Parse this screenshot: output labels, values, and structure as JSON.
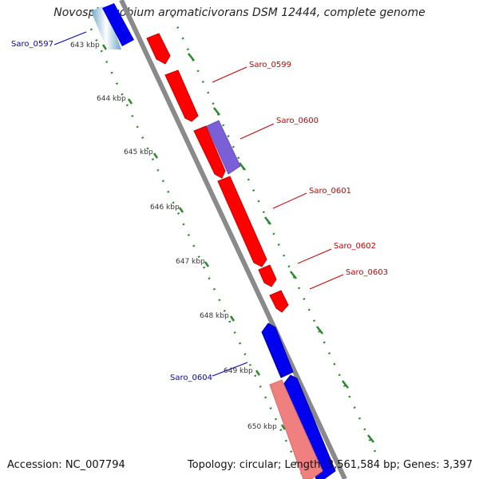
{
  "title": "Novosphingobium aromaticivorans DSM 12444, complete genome",
  "footer": {
    "accession": "Accession: NC_007794",
    "stats": "Topology: circular; Length: 3,561,584 bp; Genes: 3,397"
  },
  "colors": {
    "forward_gene": "#ff0000",
    "reverse_gene": "#0000ff",
    "forward_label": "#cc0000",
    "reverse_label": "#0000cc",
    "rna_gene": "#7b5fd6",
    "pseudo_gene": "#f08080",
    "backbone": "#8a8a8a",
    "dotted_track": "#2a8a2a"
  },
  "kbp_ticks": [
    "643 kbp",
    "644 kbp",
    "645 kbp",
    "646 kbp",
    "647 kbp",
    "648 kbp",
    "649 kbp",
    "650 kbp"
  ],
  "gene_labels": [
    {
      "text": "Saro_0597",
      "strand": "reverse"
    },
    {
      "text": "Saro_0599",
      "strand": "forward"
    },
    {
      "text": "Saro_0600",
      "strand": "forward"
    },
    {
      "text": "Saro_0601",
      "strand": "forward"
    },
    {
      "text": "Saro_0602",
      "strand": "forward"
    },
    {
      "text": "Saro_0603",
      "strand": "forward"
    },
    {
      "text": "Saro_0604",
      "strand": "reverse"
    }
  ]
}
